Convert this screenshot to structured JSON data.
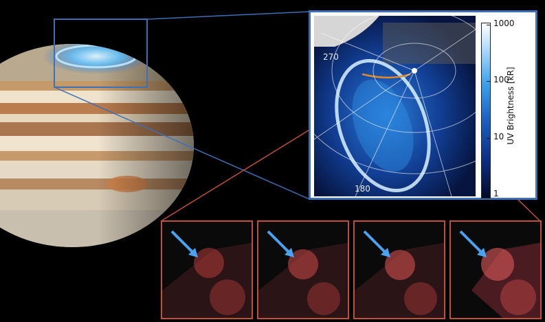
{
  "figure": {
    "inset_map": {
      "longitude_labels": [
        "270",
        "180"
      ],
      "colorbar": {
        "title": "UV Brightness [kR]",
        "ticks": [
          "1000",
          "100",
          "10",
          "1"
        ],
        "scale": "log",
        "range": [
          1,
          1000
        ]
      }
    },
    "frame_color": "#3f6fb5",
    "zoom_color": "#c0503a",
    "arrow_color": "#4aa3f0",
    "sequence_panel_count": 4
  }
}
